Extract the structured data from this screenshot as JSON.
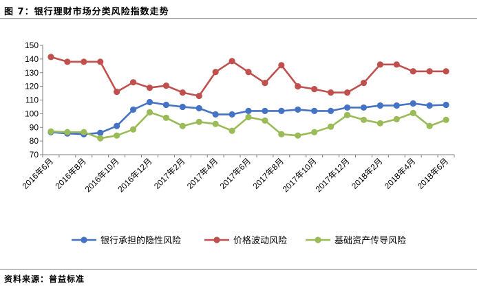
{
  "figure": {
    "title": "图 7：银行理财市场分类风险指数走势",
    "source": "资料来源：普益标准"
  },
  "colors": {
    "series": [
      "#4472C4",
      "#C0504D",
      "#9BBB59"
    ],
    "axis": "#7f7f7f"
  },
  "chart_data": {
    "type": "line",
    "title": "",
    "xlabel": "",
    "ylabel": "",
    "ylim": [
      70,
      150
    ],
    "yticks": [
      70,
      80,
      90,
      100,
      110,
      120,
      130,
      140,
      150
    ],
    "grid": false,
    "legend": "bottom",
    "x": [
      "2016年6月",
      "2016年7月",
      "2016年8月",
      "2016年9月",
      "2016年10月",
      "2016年11月",
      "2016年12月",
      "2017年1月",
      "2017年2月",
      "2017年3月",
      "2017年4月",
      "2017年5月",
      "2017年6月",
      "2017年7月",
      "2017年8月",
      "2017年9月",
      "2017年10月",
      "2017年11月",
      "2017年12月",
      "2018年1月",
      "2018年2月",
      "2018年3月",
      "2018年4月",
      "2018年5月",
      "2018年6月"
    ],
    "x_tick_labels": [
      "2016年6月",
      "2016年8月",
      "2016年10月",
      "2016年12月",
      "2017年2月",
      "2017年4月",
      "2017年6月",
      "2017年8月",
      "2017年10月",
      "2017年12月",
      "2018年2月",
      "2018年4月",
      "2018年6月"
    ],
    "series": [
      {
        "name": "银行承担的隐性风险",
        "values": [
          86.5,
          85.5,
          85,
          86,
          91,
          103,
          108.5,
          106.5,
          105,
          104,
          99.5,
          99.5,
          102,
          102,
          102,
          103,
          102,
          102,
          104.5,
          104.5,
          106,
          106,
          107.5,
          106,
          106.5
        ]
      },
      {
        "name": "价格波动风险",
        "values": [
          141.5,
          138,
          138,
          138,
          116,
          123,
          119,
          120.5,
          115.5,
          113,
          130.5,
          138.5,
          130.5,
          122.5,
          135.5,
          120,
          118,
          115.5,
          115.5,
          122.5,
          136,
          136,
          131,
          131,
          131
        ]
      },
      {
        "name": "基础资产传导风险",
        "values": [
          87,
          86.5,
          86.5,
          82,
          84,
          88.5,
          101,
          97,
          91,
          94,
          92.5,
          87.5,
          97.5,
          95,
          85,
          84,
          86.5,
          90.5,
          99,
          95.5,
          93,
          96,
          100.5,
          91,
          95.5
        ]
      }
    ]
  }
}
